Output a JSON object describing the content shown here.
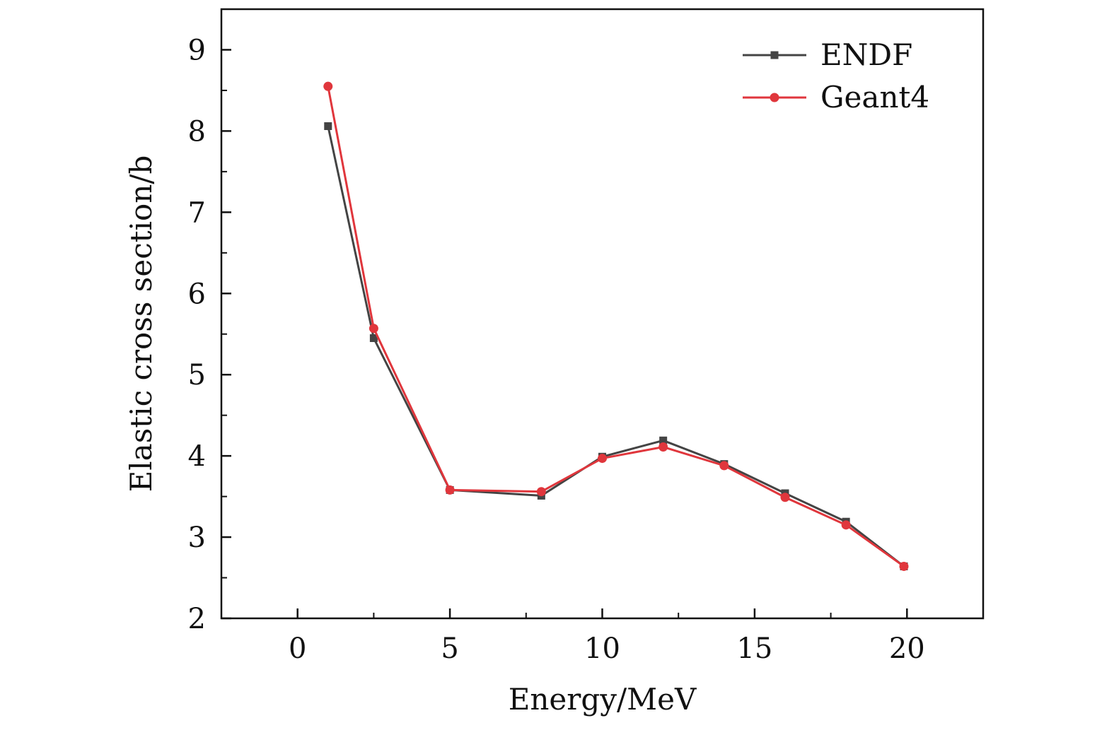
{
  "chart_data": {
    "type": "line",
    "xlabel": "Energy/MeV",
    "ylabel": "Elastic cross section/b",
    "xlim": [
      -2.5,
      22.5
    ],
    "ylim": [
      2,
      9.5
    ],
    "xticks": [
      0,
      5,
      10,
      15,
      20
    ],
    "yticks": [
      2,
      3,
      4,
      5,
      6,
      7,
      8,
      9
    ],
    "legend_position": "top-right",
    "grid": false,
    "series": [
      {
        "name": "ENDF",
        "color": "#444444",
        "marker": "square",
        "x": [
          1,
          2.5,
          5,
          8,
          10,
          12,
          14,
          16,
          18,
          19.9
        ],
        "y": [
          8.06,
          5.45,
          3.58,
          3.51,
          3.99,
          4.19,
          3.9,
          3.54,
          3.19,
          2.64
        ]
      },
      {
        "name": "Geant4",
        "color": "#e0363c",
        "marker": "circle",
        "x": [
          1,
          2.5,
          5,
          8,
          10,
          12,
          14,
          16,
          18,
          19.9
        ],
        "y": [
          8.55,
          5.57,
          3.58,
          3.56,
          3.97,
          4.11,
          3.88,
          3.49,
          3.15,
          2.64
        ]
      }
    ]
  }
}
